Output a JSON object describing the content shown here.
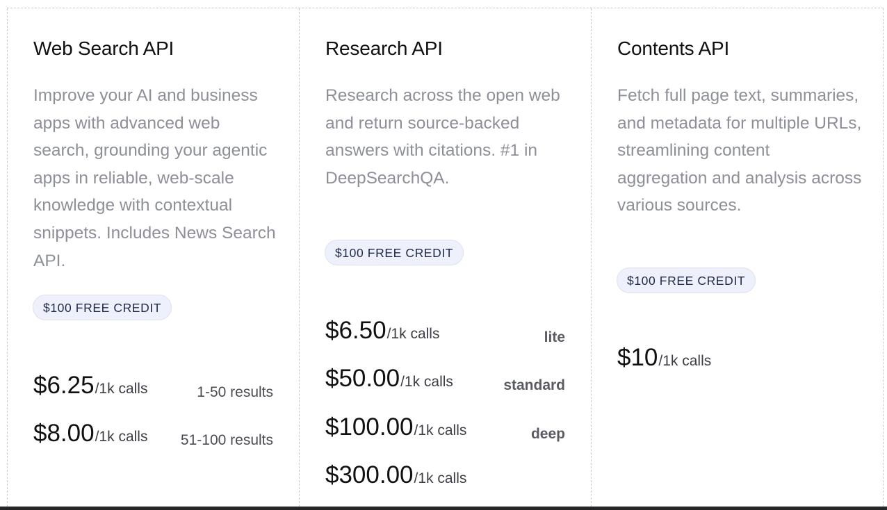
{
  "cards": [
    {
      "title": "Web Search API",
      "description": "Improve your AI and business apps with advanced web search, grounding your agentic apps in reliable, web-scale knowledge with contextual snippets. Includes News Search API.",
      "badge": "$100 FREE CREDIT",
      "prices": [
        {
          "amount": "$6.25",
          "per": "/1k calls",
          "tier": "1-50 results"
        },
        {
          "amount": "$8.00",
          "per": "/1k calls",
          "tier": "51-100 results"
        }
      ]
    },
    {
      "title": "Research API",
      "description": "Research across the open web and return source-backed answers with citations. #1 in DeepSearchQA.",
      "badge": "$100 FREE CREDIT",
      "prices": [
        {
          "amount": "$6.50",
          "per": "/1k calls",
          "tier": "lite"
        },
        {
          "amount": "$50.00",
          "per": "/1k calls",
          "tier": "standard"
        },
        {
          "amount": "$100.00",
          "per": "/1k calls",
          "tier": "deep"
        },
        {
          "amount": "$300.00",
          "per": "/1k calls",
          "tier": ""
        }
      ]
    },
    {
      "title": "Contents API",
      "description": "Fetch full page text, summaries, and metadata for multiple URLs, streamlining content aggregation and analysis across various sources.",
      "badge": "$100 FREE CREDIT",
      "prices": [
        {
          "amount": "$10",
          "per": "/1k calls",
          "tier": ""
        }
      ]
    }
  ]
}
